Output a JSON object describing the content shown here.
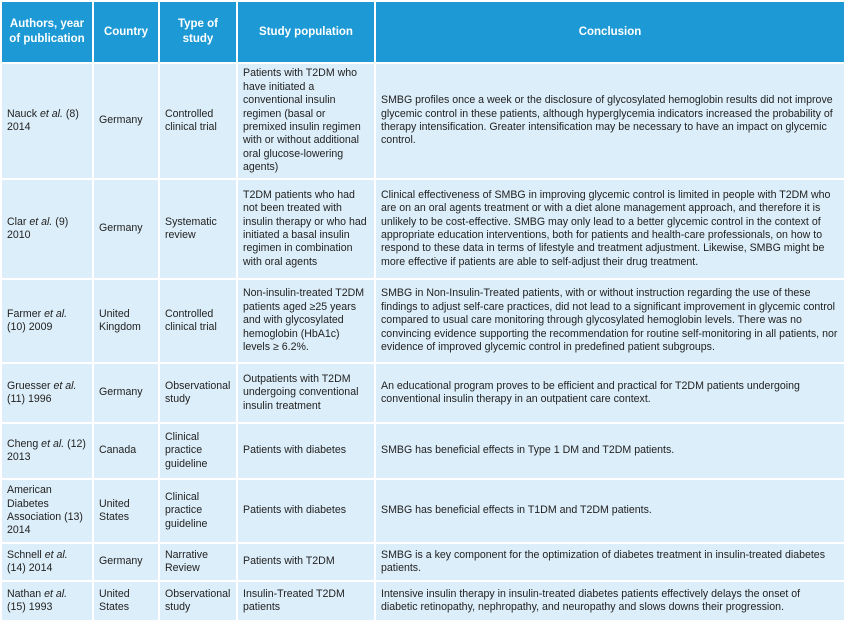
{
  "table": {
    "header": [
      "Authors, year of publication",
      "Country",
      "Type of study",
      "Study population",
      "Conclusion"
    ],
    "rows": [
      {
        "author": [
          {
            "text": "Nauck "
          },
          {
            "text": "et al.",
            "italic": true
          },
          {
            "text": " (8) 2014"
          }
        ],
        "country": "Germany",
        "type": "Controlled clinical trial",
        "population": "Patients with T2DM who have initiated a conventional insulin regimen (basal or premixed insulin regimen with or without additional oral glucose-lowering agents)",
        "conclusion": "SMBG profiles once a week or the disclosure of glycosylated hemoglobin results did not improve glycemic control in these patients, although hyperglycemia indicators increased the probability of therapy intensification. Greater intensification may be necessary to have an impact on glycemic control."
      },
      {
        "author": [
          {
            "text": "Clar "
          },
          {
            "text": "et al.",
            "italic": true
          },
          {
            "text": " (9) 2010"
          }
        ],
        "country": "Germany",
        "type": "Systematic review",
        "population": "T2DM patients who had not been treated with insulin therapy or who had initiated a basal insulin regimen in combination with oral agents",
        "conclusion": "Clinical effectiveness of SMBG in improving glycemic control is limited in people with T2DM who are on an oral agents treatment or with a diet alone management approach, and therefore it is unlikely to be cost-effective. SMBG may only lead to a better glycemic control in the context of appropriate education interventions, both for patients and health-care professionals, on how to respond to these data in terms of lifestyle and treatment adjustment. Likewise, SMBG might be more effective if patients are able to self-adjust their drug treatment."
      },
      {
        "author": [
          {
            "text": "Farmer "
          },
          {
            "text": "et al.",
            "italic": true
          },
          {
            "text": " (10) 2009"
          }
        ],
        "country": "United Kingdom",
        "type": "Controlled clinical trial",
        "population": "Non-insulin-treated T2DM patients aged ≥25 years and with glycosylated hemoglobin (HbA1c) levels ≥ 6.2%.",
        "conclusion": "SMBG in Non-Insulin-Treated patients, with or without instruction regarding the use of these findings to adjust self-care practices, did not lead to a significant improvement in glycemic control compared to usual care monitoring through glycosylated hemoglobin levels. There was no convincing evidence supporting the recommendation for routine self-monitoring in all patients, nor evidence of improved glycemic control in predefined patient subgroups."
      },
      {
        "author": [
          {
            "text": "Gruesser "
          },
          {
            "text": "et al.",
            "italic": true
          },
          {
            "text": " (11) 1996"
          }
        ],
        "country": "Germany",
        "type": "Observational study",
        "population": "Outpatients with T2DM undergoing conventional insulin treatment",
        "conclusion": "An educational program proves to be efficient and practical for T2DM patients undergoing conventional insulin therapy in an outpatient care context."
      },
      {
        "author": [
          {
            "text": "Cheng "
          },
          {
            "text": "et al.",
            "italic": true
          },
          {
            "text": " (12) 2013"
          }
        ],
        "country": "Canada",
        "type": "Clinical practice guideline",
        "population": "Patients with diabetes",
        "conclusion": "SMBG has beneficial effects in Type 1 DM and T2DM patients."
      },
      {
        "author": [
          {
            "text": "American Diabetes Association (13) 2014"
          }
        ],
        "country": "United States",
        "type": "Clinical practice guideline",
        "population": "Patients with diabetes",
        "conclusion": "SMBG has beneficial effects in T1DM and T2DM patients."
      },
      {
        "author": [
          {
            "text": "Schnell "
          },
          {
            "text": "et al.",
            "italic": true
          },
          {
            "text": " (14) 2014"
          }
        ],
        "country": "Germany",
        "type": "Narrative Review",
        "population": "Patients with T2DM",
        "conclusion": "SMBG is a key component for the optimization of diabetes treatment in insulin-treated diabetes patients."
      },
      {
        "author": [
          {
            "text": "Nathan "
          },
          {
            "text": "et al.",
            "italic": true
          },
          {
            "text": " (15) 1993"
          }
        ],
        "country": "United States",
        "type": "Observational study",
        "population": "Insulin-Treated T2DM patients",
        "conclusion": "Intensive insulin therapy in insulin-treated diabetes patients effectively delays the onset of diabetic retinopathy, nephropathy, and neuropathy and slows downs their progression."
      }
    ]
  }
}
